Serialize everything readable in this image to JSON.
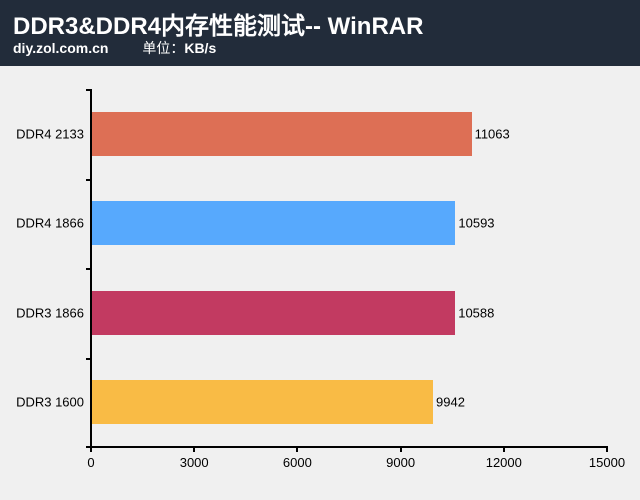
{
  "header": {
    "title": "DDR3&DDR4内存性能测试-- WinRAR",
    "source": "diy.zol.com.cn",
    "unit_label": "单位：",
    "unit": "KB/s",
    "background_color": "#222c3a"
  },
  "chart_data": {
    "type": "bar",
    "orientation": "horizontal",
    "title": "DDR3&DDR4内存性能测试-- WinRAR",
    "subtitle": "diy.zol.com.cn 单位：KB/s",
    "xlabel": "",
    "ylabel": "",
    "categories": [
      "DDR4 2133",
      "DDR4 1866",
      "DDR3 1866",
      "DDR3 1600"
    ],
    "values": [
      11063,
      10593,
      10588,
      9942
    ],
    "colors": [
      "#dd6f55",
      "#57a9fd",
      "#c23a61",
      "#f9bb45"
    ],
    "xlim": [
      0,
      15000
    ],
    "xticks": [
      0,
      3000,
      6000,
      9000,
      12000,
      15000
    ],
    "xtick_labels": [
      "0",
      "3000",
      "6000",
      "9000",
      "12000",
      "15000"
    ],
    "grid": false,
    "legend": null,
    "data_labels": [
      "11063",
      "10593",
      "10588",
      "9942"
    ]
  }
}
